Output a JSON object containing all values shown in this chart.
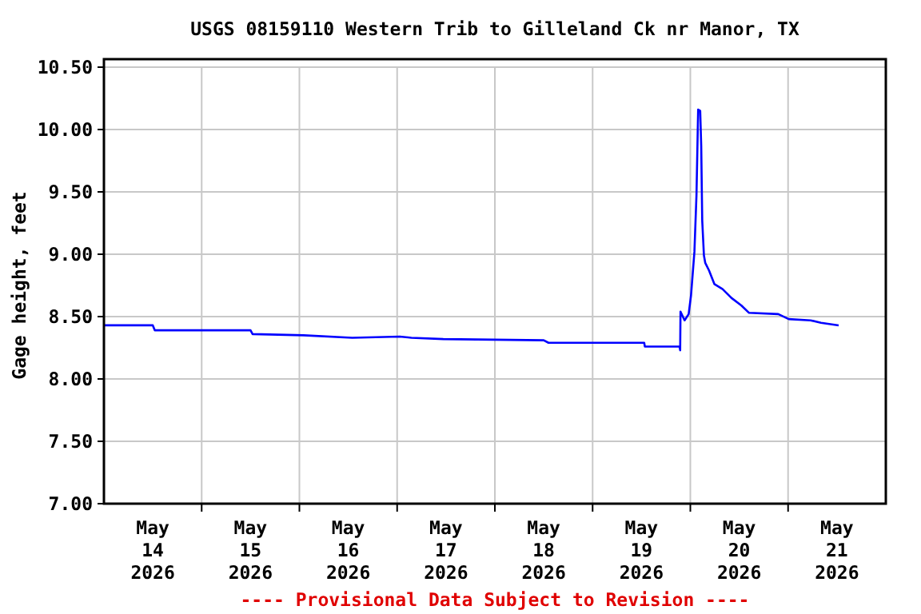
{
  "chart_data": {
    "type": "line",
    "title": "USGS 08159110 Western Trib to Gilleland Ck nr Manor, TX",
    "ylabel": "Gage height, feet",
    "annotations": [
      "---- Provisional Data Subject to Revision ----"
    ],
    "xlim": [
      "2026-05-14T00:00",
      "2026-05-22T00:00"
    ],
    "xticks": [
      {
        "value": "2026-05-14T12:00",
        "label": "May\n14\n2026"
      },
      {
        "value": "2026-05-15T00:00",
        "label": null
      },
      {
        "value": "2026-05-15T12:00",
        "label": "May\n15\n2026"
      },
      {
        "value": "2026-05-16T00:00",
        "label": null
      },
      {
        "value": "2026-05-16T12:00",
        "label": "May\n16\n2026"
      },
      {
        "value": "2026-05-17T00:00",
        "label": null
      },
      {
        "value": "2026-05-17T12:00",
        "label": "May\n17\n2026"
      },
      {
        "value": "2026-05-18T00:00",
        "label": null
      },
      {
        "value": "2026-05-18T12:00",
        "label": "May\n18\n2026"
      },
      {
        "value": "2026-05-19T00:00",
        "label": null
      },
      {
        "value": "2026-05-19T12:00",
        "label": "May\n19\n2026"
      },
      {
        "value": "2026-05-20T00:00",
        "label": null
      },
      {
        "value": "2026-05-20T12:00",
        "label": "May\n20\n2026"
      },
      {
        "value": "2026-05-21T00:00",
        "label": null
      },
      {
        "value": "2026-05-21T12:00",
        "label": "May\n21\n2026"
      }
    ],
    "ylim": [
      7,
      10.5
    ],
    "yticks": [
      {
        "value": 7,
        "label": "7.00"
      },
      {
        "value": 7.5,
        "label": "7.50"
      },
      {
        "value": 8,
        "label": "8.00"
      },
      {
        "value": 8.5,
        "label": "8.50"
      },
      {
        "value": 9,
        "label": "9.00"
      },
      {
        "value": 9.5,
        "label": "9.50"
      },
      {
        "value": 10,
        "label": "10.00"
      },
      {
        "value": 10.5,
        "label": "10.50"
      }
    ],
    "grid": true,
    "marker": "none",
    "line_style": "solid",
    "x": [
      "2026-05-14T00:00",
      "2026-05-14T12:00",
      "2026-05-14T12:30",
      "2026-05-15T12:00",
      "2026-05-15T12:30",
      "2026-05-16T01:00",
      "2026-05-16T13:00",
      "2026-05-17T00:40",
      "2026-05-17T03:30",
      "2026-05-17T11:20",
      "2026-05-18T12:00",
      "2026-05-18T13:10",
      "2026-05-18T23:50",
      "2026-05-19T12:40",
      "2026-05-19T12:50",
      "2026-05-19T21:20",
      "2026-05-19T21:30",
      "2026-05-19T21:35",
      "2026-05-19T22:35",
      "2026-05-19T23:35",
      "2026-05-20T00:10",
      "2026-05-20T01:00",
      "2026-05-20T01:30",
      "2026-05-20T01:55",
      "2026-05-20T02:25",
      "2026-05-20T02:40",
      "2026-05-20T02:55",
      "2026-05-20T03:20",
      "2026-05-20T03:40",
      "2026-05-20T04:35",
      "2026-05-20T05:55",
      "2026-05-20T07:55",
      "2026-05-20T10:05",
      "2026-05-20T12:30",
      "2026-05-20T14:25",
      "2026-05-20T21:35",
      "2026-05-21T00:10",
      "2026-05-21T05:30",
      "2026-05-21T08:05",
      "2026-05-21T12:25"
    ],
    "series": [
      {
        "color": "#0000ff",
        "values": [
          8.43,
          8.43,
          8.39,
          8.39,
          8.36,
          8.35,
          8.33,
          8.34,
          8.33,
          8.32,
          8.31,
          8.29,
          8.29,
          8.29,
          8.26,
          8.26,
          8.23,
          8.54,
          8.47,
          8.52,
          8.67,
          9.02,
          9.47,
          10.16,
          10.15,
          9.87,
          9.27,
          8.99,
          8.93,
          8.87,
          8.76,
          8.72,
          8.65,
          8.59,
          8.53,
          8.52,
          8.48,
          8.47,
          8.45,
          8.43
        ]
      }
    ]
  }
}
